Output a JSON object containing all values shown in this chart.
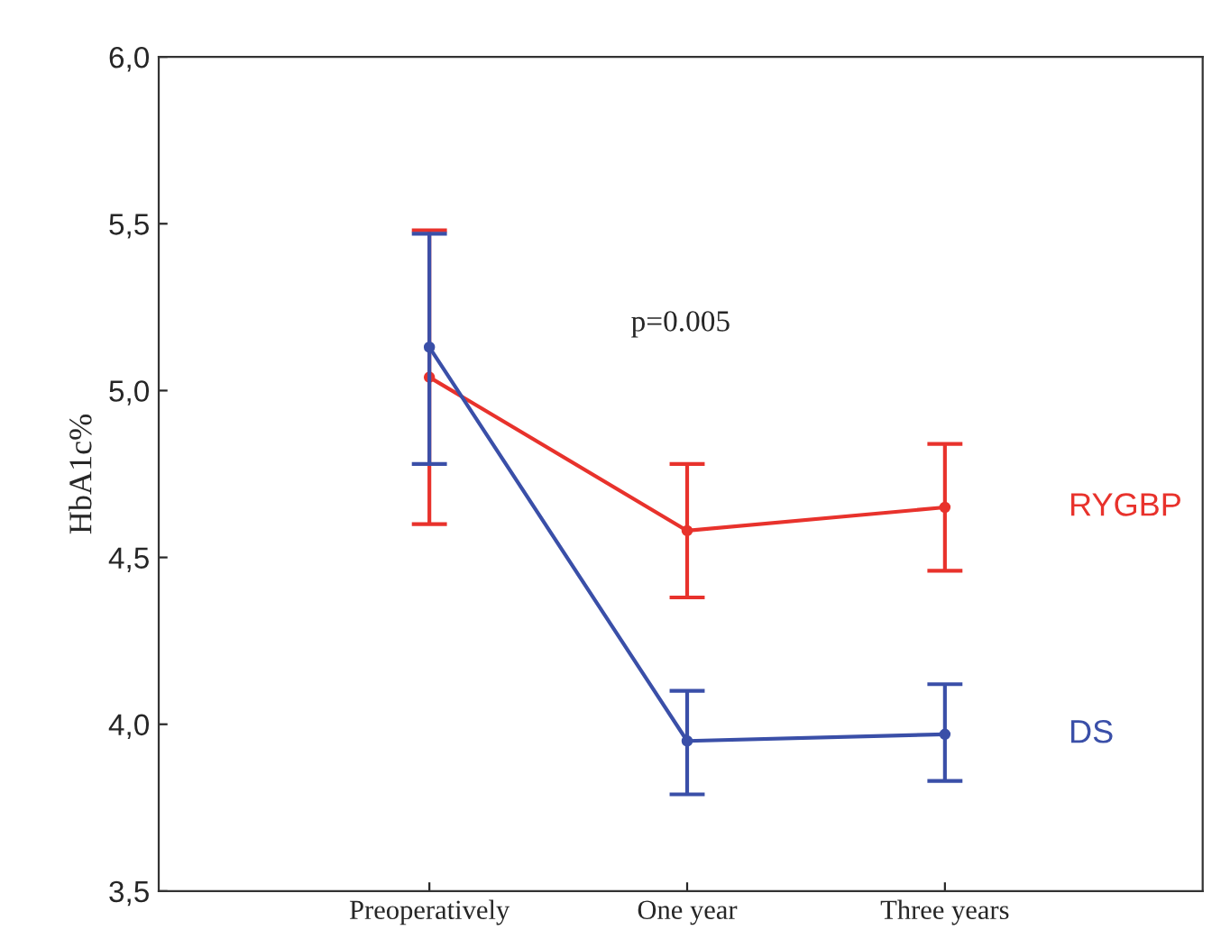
{
  "chart_data": {
    "type": "line",
    "ylabel": "HbA1c%",
    "categories": [
      "Preoperatively",
      "One year",
      "Three years"
    ],
    "series": [
      {
        "name": "RYGBP",
        "color": "#e8322c",
        "values": [
          5.04,
          4.58,
          4.65
        ],
        "errors": [
          [
            4.6,
            5.48
          ],
          [
            4.38,
            4.78
          ],
          [
            4.46,
            4.84
          ]
        ]
      },
      {
        "name": "DS",
        "color": "#3a4fa8",
        "values": [
          5.13,
          3.95,
          3.97
        ],
        "errors": [
          [
            4.78,
            5.47
          ],
          [
            3.79,
            4.1
          ],
          [
            3.83,
            4.12
          ]
        ]
      }
    ],
    "ylim": [
      3.5,
      6.0
    ],
    "yticks": [
      {
        "value": 3.5,
        "label": "3,5"
      },
      {
        "value": 4.0,
        "label": "4,0"
      },
      {
        "value": 4.5,
        "label": "4,5"
      },
      {
        "value": 5.0,
        "label": "5,0"
      },
      {
        "value": 5.5,
        "label": "5,5"
      },
      {
        "value": 6.0,
        "label": "6,0"
      }
    ],
    "annotations": [
      "p=0.005"
    ],
    "marker": "circle",
    "line_style": "solid",
    "grid": false,
    "legend": false
  }
}
